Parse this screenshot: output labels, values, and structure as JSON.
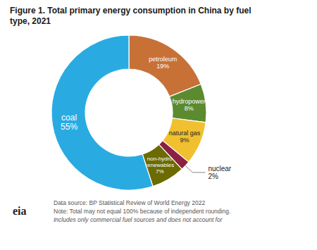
{
  "chart_data": {
    "type": "pie",
    "title": "Figure 1. Total primary energy consumption in China by fuel\ntype, 2021",
    "categories": [
      "petroleum",
      "hydropower",
      "natural gas",
      "nuclear",
      "non-hydro\nrenewables",
      "coal"
    ],
    "values": [
      19,
      8,
      9,
      2,
      7,
      55
    ],
    "value_labels": [
      "19%",
      "8%",
      "9%",
      "2%",
      "7%",
      "55%"
    ],
    "colors": [
      "#C87137",
      "#5C8A2E",
      "#F0C030",
      "#8B2040",
      "#6B6B00",
      "#29ABE2"
    ],
    "data_labels": true,
    "footnotes": [
      "Data source: BP Statistical Review of World Energy 2022",
      "Note: Total may not equal 100% because of independent rounding.",
      "Includes only commercial fuel sources and does not account for"
    ],
    "annotations": [
      "eia"
    ]
  }
}
